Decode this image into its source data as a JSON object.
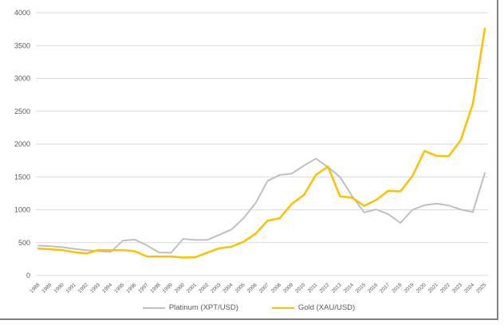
{
  "chart_data": {
    "type": "line",
    "title": "",
    "xlabel": "",
    "ylabel": "",
    "x": [
      1988,
      1989,
      1990,
      1991,
      1992,
      1993,
      1994,
      1995,
      1996,
      1997,
      1998,
      1999,
      2000,
      2001,
      2002,
      2003,
      2004,
      2005,
      2006,
      2007,
      2008,
      2009,
      2010,
      2011,
      2012,
      2013,
      2014,
      2015,
      2016,
      2017,
      2018,
      2019,
      2020,
      2021,
      2022,
      2023,
      2024,
      2025
    ],
    "series": [
      {
        "name": "Platinum (XPT/USD)",
        "color": "#bfbfbf",
        "stroke_width": 2,
        "values": [
          455,
          445,
          430,
          405,
          385,
          370,
          358,
          530,
          545,
          460,
          350,
          345,
          556,
          540,
          540,
          620,
          700,
          870,
          1100,
          1440,
          1530,
          1550,
          1670,
          1780,
          1650,
          1500,
          1210,
          960,
          1005,
          935,
          800,
          1000,
          1070,
          1095,
          1065,
          1005,
          965,
          1560
        ]
      },
      {
        "name": "Gold (XAU/USD)",
        "color": "#ffc000",
        "stroke_width": 2.5,
        "values": [
          410,
          400,
          386,
          355,
          335,
          388,
          383,
          387,
          368,
          290,
          288,
          290,
          273,
          278,
          348,
          415,
          438,
          513,
          635,
          835,
          870,
          1090,
          1225,
          1530,
          1660,
          1205,
          1185,
          1060,
          1150,
          1290,
          1280,
          1515,
          1895,
          1820,
          1815,
          2060,
          2610,
          3760
        ]
      }
    ],
    "ylim": [
      0,
      4000
    ],
    "ytick_step": 500,
    "grid": "horizontal",
    "gridline_color": "#d9d9d9",
    "tick_label_color": "#595959",
    "legend_position": "bottom-center"
  },
  "frame": {
    "border_color": "#7f7f7f",
    "background": "#ffffff"
  }
}
